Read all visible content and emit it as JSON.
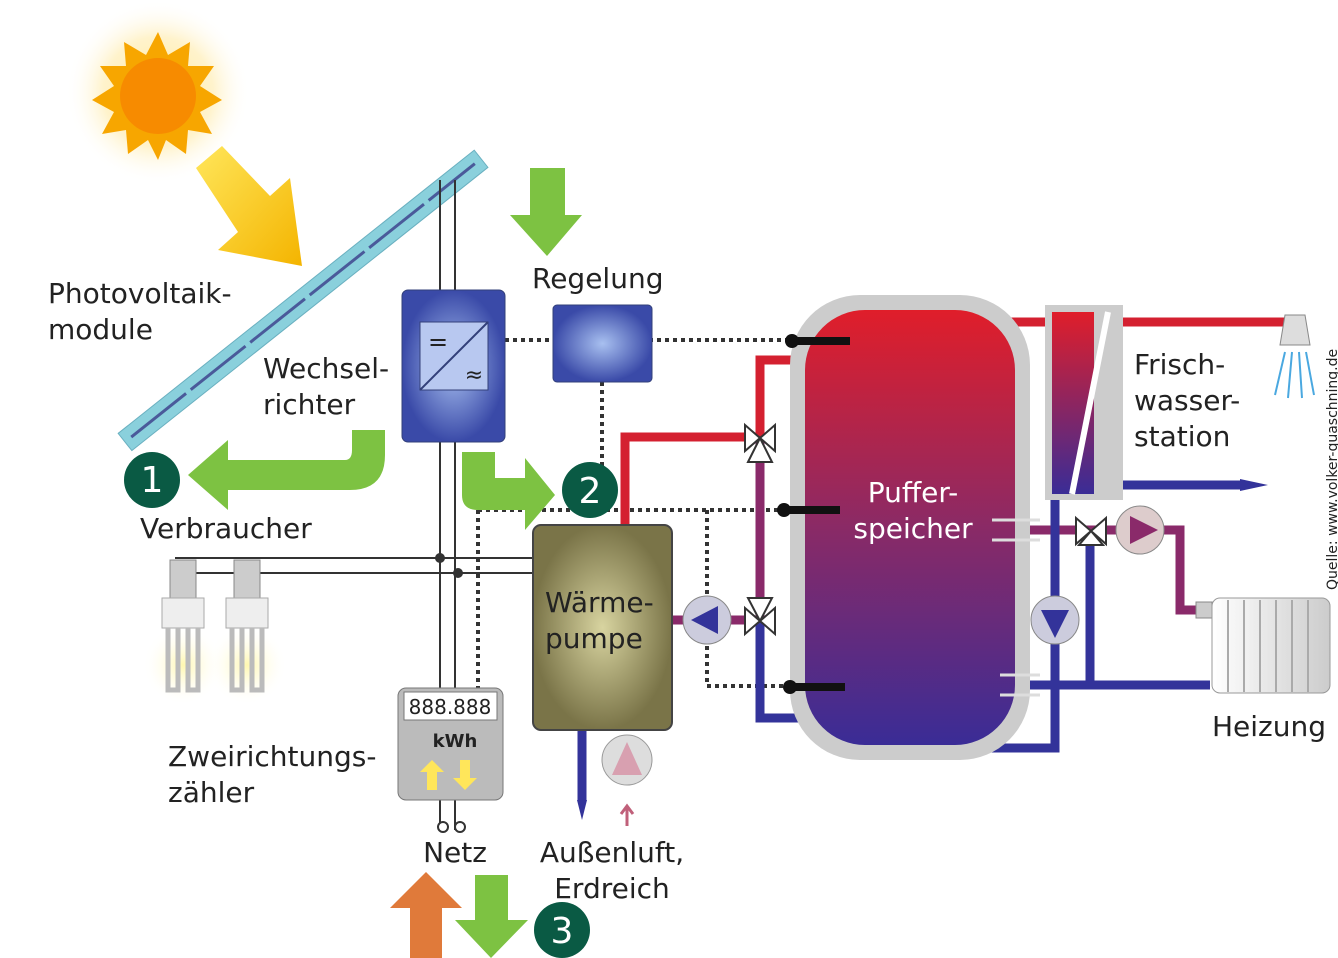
{
  "labels": {
    "pv": [
      "Photovoltaik-",
      "module"
    ],
    "inverter": [
      "Wechsel-",
      "richter"
    ],
    "control": [
      "Regelung"
    ],
    "consumer": [
      "Verbraucher"
    ],
    "meter": [
      "Zweirichtungs-",
      "zähler"
    ],
    "grid": [
      "Netz"
    ],
    "source": [
      "Außenluft,",
      "Erdreich"
    ],
    "heatpump": [
      "Wärme-",
      "pumpe"
    ],
    "buffer": [
      "Puffer-",
      "speicher"
    ],
    "freshwater": [
      "Frisch-",
      "wasser-",
      "station"
    ],
    "heating": [
      "Heizung"
    ]
  },
  "badges": [
    "1",
    "2",
    "3"
  ],
  "meter_display": {
    "reading": "888.888",
    "unit": "kWh"
  },
  "inverter_symbols": [
    "=",
    "≈"
  ],
  "source_credit": "Quelle: www.volker-quaschning.de"
}
